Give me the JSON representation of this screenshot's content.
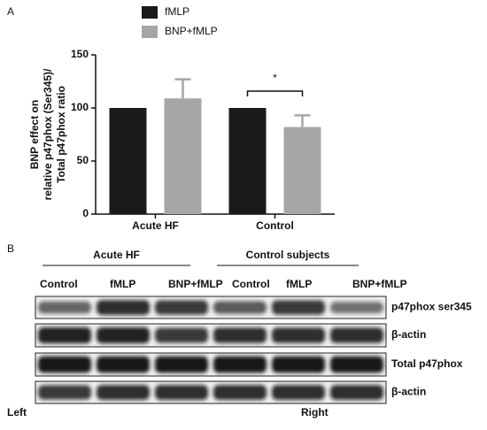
{
  "chart_data": {
    "type": "bar",
    "panel_label": "A",
    "ylabel_lines": [
      "BNP effect on",
      "relative p47phox (Ser345)/",
      "Total p47phox ratio"
    ],
    "categories": [
      "Acute HF",
      "Control"
    ],
    "series": [
      {
        "name": "fMLP",
        "color": "#1a1a1a",
        "values": [
          100,
          100
        ]
      },
      {
        "name": "BNP+fMLP",
        "color": "#a6a6a6",
        "values": [
          109,
          82
        ],
        "errors": [
          18,
          11
        ]
      }
    ],
    "ylim": [
      0,
      150
    ],
    "yticks": [
      0,
      50,
      100,
      150
    ],
    "annotation": "*"
  },
  "panel_b": {
    "panel_label": "B",
    "groups": [
      "Acute HF",
      "Control subjects"
    ],
    "lanes": [
      "Control",
      "fMLP",
      "BNP+fMLP",
      "Control",
      "fMLP",
      "BNP+fMLP"
    ],
    "rows": [
      "p47phox ser345",
      "β-actin",
      "Total p47phox",
      "β-actin"
    ],
    "footer_left": "Left",
    "footer_right": "Right"
  }
}
